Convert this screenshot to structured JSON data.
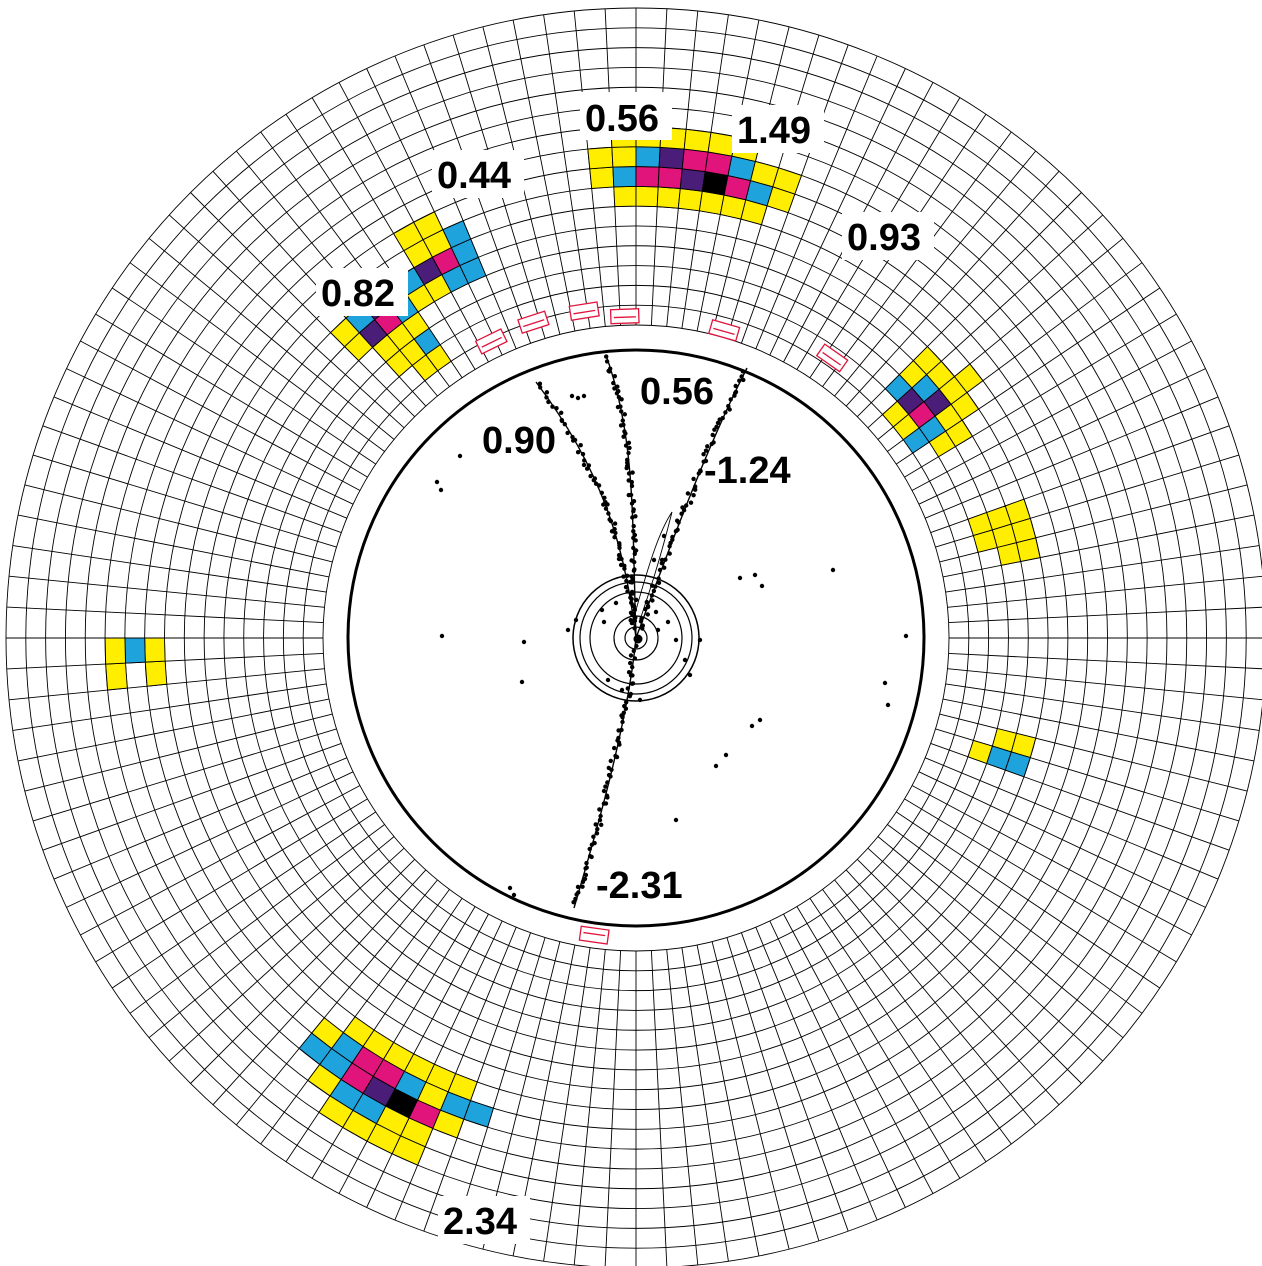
{
  "labels": {
    "cluster_top_a": "0.56",
    "cluster_top_b": "1.49",
    "cluster_upper_left": "0.44",
    "cluster_upper_right": "0.93",
    "cluster_left": "0.82",
    "cluster_bottom": "2.34",
    "track_upper_left": "0.90",
    "track_upper_mid": "0.56",
    "track_right": "-1.24",
    "track_bottom": "-2.31"
  },
  "colors": {
    "low": "#ffee00",
    "mid": "#1fa3dc",
    "high": "#e0147a",
    "higher": "#4a1e78",
    "peak": "#000000",
    "muon_box": "#e0143c",
    "grid": "#000000"
  }
}
